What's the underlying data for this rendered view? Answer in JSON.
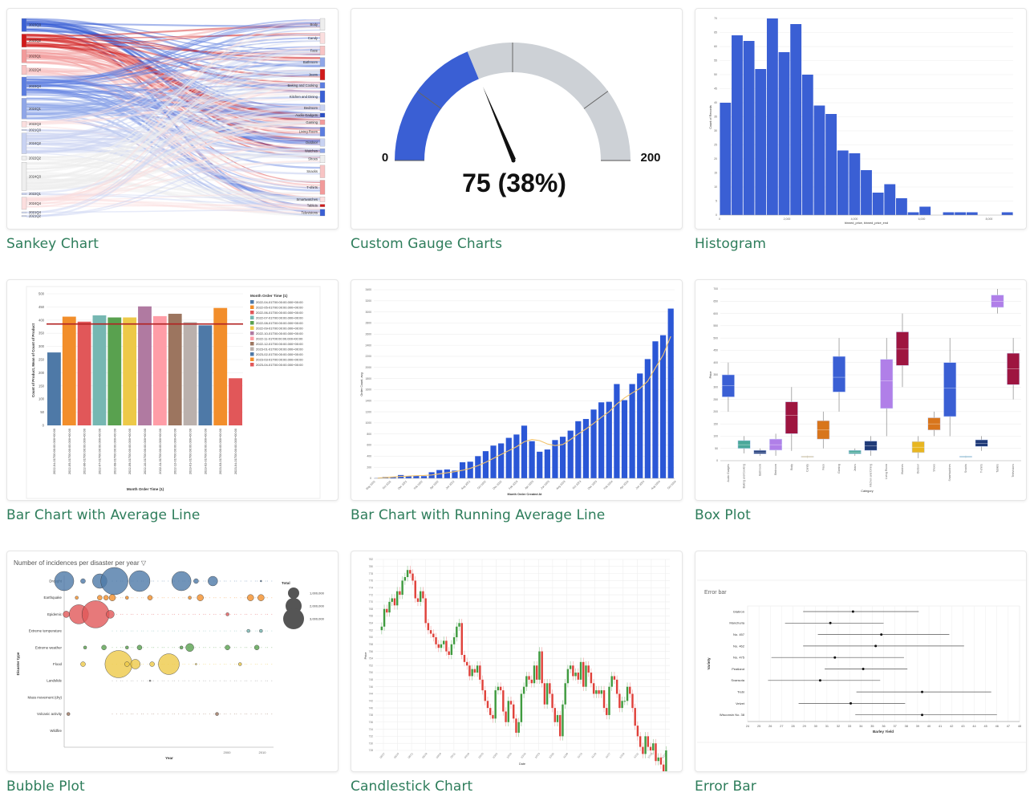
{
  "colors": {
    "title_green": "#2e7d5b",
    "blue": "#3a5fd4",
    "gauge_blue": "#3a5fd4",
    "gauge_gray": "#cdd1d6",
    "avg_line": "#b22222",
    "running_line": "#f2c36b"
  },
  "tiles": [
    {
      "id": "sankey",
      "title": "Sankey Chart"
    },
    {
      "id": "gauge",
      "title": "Custom Gauge Charts"
    },
    {
      "id": "histogram",
      "title": "Histogram"
    },
    {
      "id": "bar-average",
      "title": "Bar Chart with Average Line"
    },
    {
      "id": "bar-running",
      "title": "Bar Chart with Running Average Line"
    },
    {
      "id": "boxplot",
      "title": "Box Plot"
    },
    {
      "id": "bubble",
      "title": "Bubble Plot"
    },
    {
      "id": "candlestick",
      "title": "Candlestick Chart"
    },
    {
      "id": "errorbar",
      "title": "Error Bar"
    }
  ],
  "chart_data": [
    {
      "id": "sankey",
      "type": "sankey",
      "title": "Sankey Chart",
      "left_nodes": [
        "2023Q3",
        "2023Q2",
        "2023Q1",
        "2022Q4",
        "2023Q4",
        "2024Q1",
        "2022Q3",
        "2021Q3",
        "2024Q2",
        "2022Q2",
        "2024Q3",
        "2022Q1",
        "2024Q4",
        "2021Q4",
        "2021Q2"
      ],
      "left_colors": [
        "#3a5fd4",
        "#d11a1a",
        "#f29a9a",
        "#f8c4c4",
        "#5b7de0",
        "#8fa6e8",
        "#fbdede",
        "#c9d3f2",
        "#c9d3f2",
        "#eeeeee",
        "#eeeeee",
        "#c9d3f2",
        "#fbdede",
        "#c9d3f2",
        "#c9d3f2"
      ],
      "left_sizes": [
        14,
        14,
        14,
        10,
        20,
        22,
        6,
        1,
        22,
        4,
        30,
        2,
        13,
        1,
        1
      ],
      "right_nodes": [
        "Body",
        "Candy",
        "Face",
        "Bathroom",
        "Jeans",
        "Baking and Cooking",
        "Kitchen and Dining",
        "Bedroom",
        "Audio Gadgets",
        "Gaming",
        "Living Room",
        "Outdoor",
        "Watches",
        "Shoes",
        "Snacks",
        "T-shirts",
        "Smartwatches",
        "Tablets",
        "Televisions"
      ],
      "right_colors": [
        "#eeeeee",
        "#fbdede",
        "#f8c4c4",
        "#8fa6e8",
        "#d11a1a",
        "#5b7de0",
        "#3a5fd4",
        "#c9d3f2",
        "#2b4fc4",
        "#f29a9a",
        "#5b7de0",
        "#c9d3f2",
        "#8fa6e8",
        "#eeeeee",
        "#f8c4c4",
        "#f29a9a",
        "#fbdede",
        "#d11a1a",
        "#3a5fd4"
      ],
      "right_sizes": [
        14,
        13,
        11,
        11,
        13,
        7,
        14,
        7,
        5,
        6,
        11,
        9,
        5,
        9,
        15,
        17,
        6,
        3,
        8
      ]
    },
    {
      "id": "gauge",
      "type": "gauge",
      "title": "Custom Gauge Charts",
      "min": 0,
      "max": 200,
      "value": 75,
      "percent": 38,
      "min_label": "0",
      "max_label": "200",
      "value_label": "75 (38%)",
      "filled_to": 75
    },
    {
      "id": "histogram",
      "type": "bar",
      "title": "Histogram",
      "xlabel": "binned_price, binned_price_end",
      "ylabel": "Count of Records",
      "ylim": [
        0,
        70
      ],
      "yticks": [
        0,
        5,
        10,
        15,
        20,
        25,
        30,
        35,
        40,
        45,
        50,
        55,
        60,
        65,
        70
      ],
      "xticks": [
        "0",
        "2,000",
        "4,000",
        "6,000",
        "8,000"
      ],
      "values": [
        40,
        64,
        62,
        52,
        70,
        58,
        68,
        50,
        39,
        36,
        23,
        22,
        16,
        8,
        11,
        6,
        1,
        3,
        0,
        1,
        1,
        1,
        0,
        0,
        1
      ]
    },
    {
      "id": "bar-average",
      "type": "bar",
      "title": "Bar Chart with Average Line",
      "xlabel": "Month Order Time (1)",
      "ylabel": "Count of Product, Mean of Count of Product",
      "ylim": [
        0,
        500
      ],
      "yticks": [
        0,
        50,
        100,
        150,
        200,
        250,
        300,
        350,
        400,
        450,
        500
      ],
      "legend_title": "Month Order Time (1)",
      "categories": [
        "2022-04-01T00:00:00.000+00:00",
        "2022-05-01T00:00:00.000+00:00",
        "2022-06-01T00:00:00.000+00:00",
        "2022-07-01T00:00:00.000+00:00",
        "2022-08-01T00:00:00.000+00:00",
        "2022-09-01T00:00:00.000+00:00",
        "2022-10-01T00:00:00.000+00:00",
        "2022-11-01T00:00:00.000+00:00",
        "2022-12-01T00:00:00.000+00:00",
        "2023-01-01T00:00:00.000+00:00",
        "2023-02-01T00:00:00.000+00:00",
        "2023-03-01T00:00:00.000+00:00",
        "2023-04-01T00:00:00.000+00:00"
      ],
      "values": [
        277,
        413,
        394,
        418,
        410,
        410,
        452,
        415,
        424,
        392,
        380,
        446,
        179
      ],
      "colors": [
        "#4e79a7",
        "#f28e2b",
        "#e15759",
        "#76b7b2",
        "#59a14f",
        "#edc948",
        "#b07aa1",
        "#ff9da7",
        "#9c755f",
        "#bab0ac",
        "#4e79a7",
        "#f28e2b",
        "#e15759"
      ],
      "average": 385
    },
    {
      "id": "bar-running",
      "type": "bar",
      "title": "Bar Chart with Running Average Line",
      "xlabel": "Month Order Created At",
      "ylabel": "Order Count, avg",
      "ylim": [
        0,
        3400
      ],
      "yticks": [
        0,
        200,
        400,
        600,
        800,
        1000,
        1200,
        1400,
        1600,
        1800,
        2000,
        2200,
        2400,
        2600,
        2800,
        3000,
        3200,
        3400
      ],
      "xticks": [
        "May 2021",
        "Oct 2021",
        "Dec 2021",
        "Feb 2022",
        "Apr 2022",
        "Jun 2022",
        "Aug 2022",
        "Oct 2022",
        "Dec 2022",
        "Feb 2023",
        "Apr 2023",
        "Jun 2023",
        "Aug 2023",
        "Oct 2023",
        "Dec 2023",
        "Feb 2024",
        "Apr 2024",
        "Jun 2024",
        "Aug 2024",
        "Oct 2024"
      ],
      "values": [
        5,
        25,
        30,
        60,
        40,
        45,
        40,
        110,
        150,
        160,
        140,
        290,
        300,
        400,
        490,
        590,
        630,
        730,
        790,
        950,
        670,
        480,
        520,
        690,
        750,
        860,
        1030,
        1070,
        1240,
        1370,
        1380,
        1700,
        1410,
        1700,
        1890,
        2150,
        2470,
        2580,
        3060
      ],
      "running_avg": [
        5,
        15,
        25,
        35,
        40,
        48,
        52,
        60,
        80,
        100,
        120,
        145,
        180,
        230,
        290,
        360,
        430,
        500,
        570,
        660,
        700,
        680,
        620,
        590,
        610,
        700,
        800,
        890,
        990,
        1100,
        1200,
        1340,
        1450,
        1540,
        1620,
        1750,
        1990,
        2220,
        2560
      ]
    },
    {
      "id": "boxplot",
      "type": "box",
      "title": "Box Plot",
      "xlabel": "Category",
      "ylabel": "Price",
      "ylim": [
        0,
        700
      ],
      "yticks": [
        0,
        50,
        100,
        150,
        200,
        250,
        300,
        350,
        400,
        450,
        500,
        550,
        600,
        650,
        700
      ],
      "categories": [
        "Audio Gadgets",
        "Baking and Cooking",
        "Bathroom",
        "Bedroom",
        "Body",
        "Candy",
        "Face",
        "Gaming",
        "Jeans",
        "Kitchen and Dining",
        "Living Room",
        "Watches",
        "Outdoor",
        "Shoes",
        "Smartwatches",
        "Snacks",
        "T-shirts",
        "Tablets",
        "Televisions"
      ],
      "boxes": [
        {
          "min": 200,
          "q1": 260,
          "median": 305,
          "q3": 350,
          "max": 400,
          "color": "#3a5fd4"
        },
        {
          "min": 30,
          "q1": 50,
          "median": 65,
          "q3": 82,
          "max": 100,
          "color": "#4aa89a"
        },
        {
          "min": 20,
          "q1": 28,
          "median": 35,
          "q3": 42,
          "max": 50,
          "color": "#1f3a78"
        },
        {
          "min": 20,
          "q1": 43,
          "median": 65,
          "q3": 88,
          "max": 110,
          "color": "#b07fe8"
        },
        {
          "min": 40,
          "q1": 110,
          "median": 185,
          "q3": 240,
          "max": 300,
          "color": "#9e1540"
        },
        {
          "min": 12,
          "q1": 14,
          "median": 16,
          "q3": 18,
          "max": 20,
          "color": "#e8b622"
        },
        {
          "min": 50,
          "q1": 88,
          "median": 125,
          "q3": 163,
          "max": 200,
          "color": "#d8751c"
        },
        {
          "min": 200,
          "q1": 280,
          "median": 340,
          "q3": 425,
          "max": 500,
          "color": "#3a5fd4"
        },
        {
          "min": 20,
          "q1": 28,
          "median": 35,
          "q3": 42,
          "max": 50,
          "color": "#4aa89a"
        },
        {
          "min": 20,
          "q1": 42,
          "median": 60,
          "q3": 80,
          "max": 100,
          "color": "#1f3a78"
        },
        {
          "min": 100,
          "q1": 213,
          "median": 325,
          "q3": 413,
          "max": 500,
          "color": "#b07fe8"
        },
        {
          "min": 300,
          "q1": 388,
          "median": 455,
          "q3": 525,
          "max": 600,
          "color": "#9e1540"
        },
        {
          "min": 10,
          "q1": 33,
          "median": 55,
          "q3": 78,
          "max": 100,
          "color": "#e8b622"
        },
        {
          "min": 100,
          "q1": 125,
          "median": 150,
          "q3": 175,
          "max": 200,
          "color": "#d8751c"
        },
        {
          "min": 100,
          "q1": 180,
          "median": 295,
          "q3": 400,
          "max": 500,
          "color": "#3a5fd4"
        },
        {
          "min": 12,
          "q1": 14,
          "median": 16,
          "q3": 18,
          "max": 20,
          "color": "#4aa89a"
        },
        {
          "min": 40,
          "q1": 58,
          "median": 70,
          "q3": 85,
          "max": 100,
          "color": "#1f3a78"
        },
        {
          "min": 600,
          "q1": 625,
          "median": 650,
          "q3": 675,
          "max": 700,
          "color": "#b07fe8"
        },
        {
          "min": 250,
          "q1": 310,
          "median": 375,
          "q3": 438,
          "max": 500,
          "color": "#9e1540"
        }
      ]
    },
    {
      "id": "bubble",
      "type": "scatter",
      "title": "Number of incidences per disaster per year",
      "xlabel": "Year",
      "ylabel": "Disaster type",
      "xticks": [
        "2000",
        "2010"
      ],
      "legend_title": "Total",
      "legend_entries": [
        "1,000,000",
        "2,000,000",
        "3,000,000"
      ],
      "categories": [
        "Drought",
        "Earthquake",
        "Epidemic",
        "Extreme temperature",
        "Extreme weather",
        "Flood",
        "Landslide",
        "Mass movement (dry)",
        "Volcanic activity",
        "Wildfire"
      ],
      "colors": [
        "#4e79a7",
        "#f28e2b",
        "#e15759",
        "#76b7b2",
        "#59a14f",
        "#edc948",
        "#888888",
        "#999999",
        "#9c755f",
        "#aaaaaa"
      ],
      "bubbles": [
        {
          "cat": 0,
          "x": 0.0,
          "r": 12
        },
        {
          "cat": 0,
          "x": 0.09,
          "r": 3
        },
        {
          "cat": 0,
          "x": 0.17,
          "r": 9
        },
        {
          "cat": 0,
          "x": 0.24,
          "r": 17
        },
        {
          "cat": 0,
          "x": 0.36,
          "r": 13
        },
        {
          "cat": 0,
          "x": 0.56,
          "r": 12
        },
        {
          "cat": 0,
          "x": 0.63,
          "r": 3
        },
        {
          "cat": 0,
          "x": 0.71,
          "r": 6
        },
        {
          "cat": 0,
          "x": 0.94,
          "r": 1
        },
        {
          "cat": 1,
          "x": 0.06,
          "r": 2
        },
        {
          "cat": 1,
          "x": 0.17,
          "r": 3
        },
        {
          "cat": 1,
          "x": 0.2,
          "r": 3
        },
        {
          "cat": 1,
          "x": 0.23,
          "r": 4
        },
        {
          "cat": 1,
          "x": 0.3,
          "r": 2
        },
        {
          "cat": 1,
          "x": 0.41,
          "r": 3
        },
        {
          "cat": 1,
          "x": 0.6,
          "r": 2
        },
        {
          "cat": 1,
          "x": 0.65,
          "r": 4
        },
        {
          "cat": 1,
          "x": 0.89,
          "r": 4
        },
        {
          "cat": 1,
          "x": 0.94,
          "r": 4
        },
        {
          "cat": 2,
          "x": 0.01,
          "r": 4
        },
        {
          "cat": 2,
          "x": 0.07,
          "r": 12
        },
        {
          "cat": 2,
          "x": 0.15,
          "r": 17
        },
        {
          "cat": 2,
          "x": 0.22,
          "r": 5
        },
        {
          "cat": 2,
          "x": 0.78,
          "r": 2
        },
        {
          "cat": 3,
          "x": 0.88,
          "r": 2
        },
        {
          "cat": 3,
          "x": 0.94,
          "r": 2
        },
        {
          "cat": 4,
          "x": 0.1,
          "r": 2
        },
        {
          "cat": 4,
          "x": 0.19,
          "r": 3
        },
        {
          "cat": 4,
          "x": 0.3,
          "r": 2
        },
        {
          "cat": 4,
          "x": 0.36,
          "r": 3
        },
        {
          "cat": 4,
          "x": 0.56,
          "r": 2
        },
        {
          "cat": 4,
          "x": 0.6,
          "r": 5
        },
        {
          "cat": 4,
          "x": 0.78,
          "r": 3
        },
        {
          "cat": 4,
          "x": 0.92,
          "r": 3
        },
        {
          "cat": 5,
          "x": 0.09,
          "r": 3
        },
        {
          "cat": 5,
          "x": 0.26,
          "r": 17
        },
        {
          "cat": 5,
          "x": 0.3,
          "r": 3
        },
        {
          "cat": 5,
          "x": 0.34,
          "r": 6
        },
        {
          "cat": 5,
          "x": 0.42,
          "r": 3
        },
        {
          "cat": 5,
          "x": 0.5,
          "r": 13
        },
        {
          "cat": 5,
          "x": 0.63,
          "r": 1
        },
        {
          "cat": 5,
          "x": 0.84,
          "r": 2
        },
        {
          "cat": 6,
          "x": 0.41,
          "r": 1
        },
        {
          "cat": 8,
          "x": 0.02,
          "r": 2
        },
        {
          "cat": 8,
          "x": 0.73,
          "r": 2
        }
      ]
    },
    {
      "id": "candlestick",
      "type": "candlestick",
      "title": "Candlestick Chart",
      "xlabel": "Date",
      "ylabel": "Price",
      "ylim": [
        728,
        782
      ],
      "xticks": [
        "08/07",
        "08/14",
        "08/21",
        "08/28",
        "09/04",
        "09/11",
        "09/18",
        "09/25",
        "10/02",
        "10/09",
        "10/16",
        "10/23",
        "10/30",
        "11/06",
        "11/13",
        "11/20",
        "11/27",
        "12/04",
        "12/11",
        "12/18",
        "12/25"
      ],
      "close_series": [
        762,
        763,
        768,
        767,
        770,
        771,
        769,
        773,
        772,
        776,
        777,
        779,
        778,
        776,
        771,
        770,
        773,
        771,
        764,
        762,
        761,
        760,
        758,
        757,
        758,
        759,
        756,
        755,
        758,
        760,
        763,
        764,
        755,
        753,
        752,
        749,
        751,
        750,
        752,
        748,
        745,
        742,
        740,
        738,
        737,
        745,
        746,
        745,
        739,
        736,
        742,
        741,
        737,
        733,
        736,
        744,
        746,
        749,
        748,
        747,
        752,
        748,
        756,
        747,
        741,
        747,
        744,
        740,
        736,
        738,
        732,
        741,
        747,
        751,
        752,
        749,
        750,
        748,
        753,
        746,
        752,
        750,
        747,
        744,
        745,
        744,
        745,
        740,
        738,
        746,
        749,
        748,
        744,
        740,
        742,
        742,
        746,
        744,
        740,
        735,
        732,
        729,
        727,
        732,
        729,
        728,
        730,
        725,
        726,
        724,
        722,
        728
      ]
    },
    {
      "id": "errorbar",
      "type": "errorbar",
      "title": "Error bar",
      "xlabel": "Barley Yield",
      "ylabel": "Variety",
      "xlim": [
        24,
        48
      ],
      "xticks": [
        24,
        25,
        26,
        27,
        28,
        29,
        30,
        31,
        32,
        33,
        34,
        35,
        36,
        37,
        38,
        39,
        40,
        41,
        42,
        43,
        44,
        45,
        46,
        47,
        48
      ],
      "categories": [
        "Glabron",
        "Manchuria",
        "No. 457",
        "No. 462",
        "No. 475",
        "Peatland",
        "Svansota",
        "Trebi",
        "Velvet",
        "Wisconsin No. 38"
      ],
      "mean": [
        33.3,
        31.3,
        35.8,
        35.3,
        31.7,
        34.2,
        30.4,
        39.4,
        33.1,
        39.4
      ],
      "low": [
        28.9,
        27.3,
        30.2,
        28.9,
        26.1,
        30.8,
        25.8,
        33.6,
        28.5,
        33.5
      ],
      "high": [
        39.1,
        36.0,
        41.8,
        43.1,
        37.8,
        38.1,
        35.7,
        45.5,
        37.9,
        46.0
      ]
    }
  ]
}
